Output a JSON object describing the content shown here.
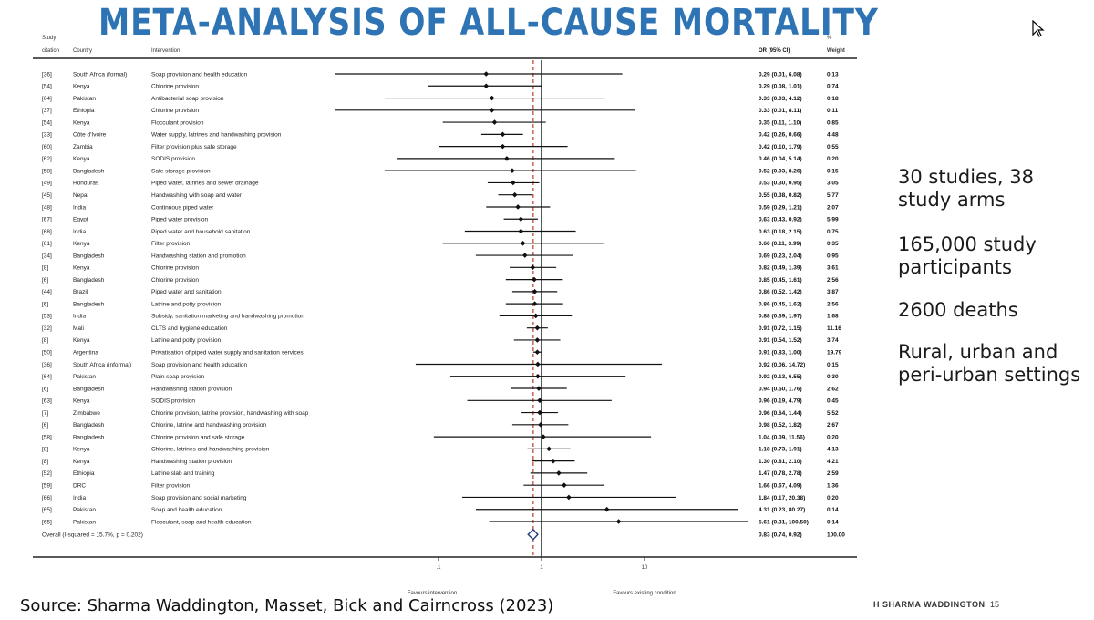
{
  "slide": {
    "title": "META-ANALYSIS OF ALL-CAUSE MORTALITY",
    "source": "Source: Sharma Waddington, Masset, Bick and Cairncross (2023)",
    "footer_author": "H SHARMA WADDINGTON",
    "footer_page": "15"
  },
  "bullets": [
    "30 studies, 38 study arms",
    "165,000 study participants",
    "2600 deaths",
    "Rural, urban and peri-urban settings"
  ],
  "chart_data": {
    "type": "forest",
    "columns": {
      "citation_line1": "Study",
      "citation_line2": "citation",
      "country": "Country",
      "intervention": "Intervention",
      "or": "OR (95% CI)",
      "weight_line1": "%",
      "weight_line2": "Weight"
    },
    "x_axis": {
      "scale": "log",
      "ticks": [
        0.1,
        1,
        10
      ],
      "tick_labels": [
        ".1",
        "1",
        "10"
      ],
      "left_label": "Favours intervention",
      "right_label": "Favours existing condition"
    },
    "rows": [
      {
        "citation": "[36]",
        "country": "South Africa (formal)",
        "intervention": "Soap provision and health education",
        "or": 0.29,
        "lo": 0.01,
        "hi": 6.08,
        "or_text": "0.29 (0.01, 6.08)",
        "weight": "0.13"
      },
      {
        "citation": "[54]",
        "country": "Kenya",
        "intervention": "Chlorine provision",
        "or": 0.29,
        "lo": 0.08,
        "hi": 1.01,
        "or_text": "0.29 (0.08, 1.01)",
        "weight": "0.74"
      },
      {
        "citation": "[64]",
        "country": "Pakistan",
        "intervention": "Antibacterial soap provision",
        "or": 0.33,
        "lo": 0.03,
        "hi": 4.12,
        "or_text": "0.33 (0.03, 4.12)",
        "weight": "0.18"
      },
      {
        "citation": "[37]",
        "country": "Ethiopia",
        "intervention": "Chlorine provision",
        "or": 0.33,
        "lo": 0.01,
        "hi": 8.11,
        "or_text": "0.33 (0.01, 8.11)",
        "weight": "0.11"
      },
      {
        "citation": "[54]",
        "country": "Kenya",
        "intervention": "Flocculant provision",
        "or": 0.35,
        "lo": 0.11,
        "hi": 1.1,
        "or_text": "0.35 (0.11, 1.10)",
        "weight": "0.85"
      },
      {
        "citation": "[33]",
        "country": "Côte d'Ivoire",
        "intervention": "Water supply, latrines and handwashing provision",
        "or": 0.42,
        "lo": 0.26,
        "hi": 0.66,
        "or_text": "0.42 (0.26, 0.66)",
        "weight": "4.48"
      },
      {
        "citation": "[60]",
        "country": "Zambia",
        "intervention": "Filter provision plus safe storage",
        "or": 0.42,
        "lo": 0.1,
        "hi": 1.79,
        "or_text": "0.42 (0.10, 1.79)",
        "weight": "0.55"
      },
      {
        "citation": "[62]",
        "country": "Kenya",
        "intervention": "SODIS provision",
        "or": 0.46,
        "lo": 0.04,
        "hi": 5.14,
        "or_text": "0.46 (0.04, 5.14)",
        "weight": "0.20"
      },
      {
        "citation": "[58]",
        "country": "Bangladesh",
        "intervention": "Safe storage provision",
        "or": 0.52,
        "lo": 0.03,
        "hi": 8.26,
        "or_text": "0.52 (0.03, 8.26)",
        "weight": "0.15"
      },
      {
        "citation": "[49]",
        "country": "Honduras",
        "intervention": "Piped water, latrines and sewer drainage",
        "or": 0.53,
        "lo": 0.3,
        "hi": 0.95,
        "or_text": "0.53 (0.30, 0.95)",
        "weight": "3.05"
      },
      {
        "citation": "[45]",
        "country": "Nepal",
        "intervention": "Handwashing with soap and water",
        "or": 0.55,
        "lo": 0.38,
        "hi": 0.82,
        "or_text": "0.55 (0.38, 0.82)",
        "weight": "5.77"
      },
      {
        "citation": "[48]",
        "country": "India",
        "intervention": "Continuous piped water",
        "or": 0.59,
        "lo": 0.29,
        "hi": 1.21,
        "or_text": "0.59 (0.29, 1.21)",
        "weight": "2.07"
      },
      {
        "citation": "[67]",
        "country": "Egypt",
        "intervention": "Piped water provision",
        "or": 0.63,
        "lo": 0.43,
        "hi": 0.92,
        "or_text": "0.63 (0.43, 0.92)",
        "weight": "5.99"
      },
      {
        "citation": "[68]",
        "country": "India",
        "intervention": "Piped water and household sanitation",
        "or": 0.63,
        "lo": 0.18,
        "hi": 2.15,
        "or_text": "0.63 (0.18, 2.15)",
        "weight": "0.75"
      },
      {
        "citation": "[61]",
        "country": "Kenya",
        "intervention": "Filter provision",
        "or": 0.66,
        "lo": 0.11,
        "hi": 3.99,
        "or_text": "0.66 (0.11, 3.99)",
        "weight": "0.35"
      },
      {
        "citation": "[34]",
        "country": "Bangladesh",
        "intervention": "Handwashing station and promotion",
        "or": 0.69,
        "lo": 0.23,
        "hi": 2.04,
        "or_text": "0.69 (0.23, 2.04)",
        "weight": "0.95"
      },
      {
        "citation": "[8]",
        "country": "Kenya",
        "intervention": "Chlorine provision",
        "or": 0.82,
        "lo": 0.49,
        "hi": 1.39,
        "or_text": "0.82 (0.49, 1.39)",
        "weight": "3.61"
      },
      {
        "citation": "[6]",
        "country": "Bangladesh",
        "intervention": "Chlorine provision",
        "or": 0.85,
        "lo": 0.45,
        "hi": 1.61,
        "or_text": "0.85 (0.45, 1.61)",
        "weight": "2.56"
      },
      {
        "citation": "[44]",
        "country": "Brazil",
        "intervention": "Piped water and sanitation",
        "or": 0.86,
        "lo": 0.52,
        "hi": 1.42,
        "or_text": "0.86 (0.52, 1.42)",
        "weight": "3.87"
      },
      {
        "citation": "[6]",
        "country": "Bangladesh",
        "intervention": "Latrine and potty provision",
        "or": 0.86,
        "lo": 0.45,
        "hi": 1.62,
        "or_text": "0.86 (0.45, 1.62)",
        "weight": "2.56"
      },
      {
        "citation": "[53]",
        "country": "India",
        "intervention": "Subsidy, sanitation marketing and handwashing promotion",
        "or": 0.88,
        "lo": 0.39,
        "hi": 1.97,
        "or_text": "0.88 (0.39, 1.97)",
        "weight": "1.68"
      },
      {
        "citation": "[32]",
        "country": "Mali",
        "intervention": "CLTS and hygiene education",
        "or": 0.91,
        "lo": 0.72,
        "hi": 1.15,
        "or_text": "0.91 (0.72, 1.15)",
        "weight": "11.16"
      },
      {
        "citation": "[8]",
        "country": "Kenya",
        "intervention": "Latrine and potty provision",
        "or": 0.91,
        "lo": 0.54,
        "hi": 1.52,
        "or_text": "0.91 (0.54, 1.52)",
        "weight": "3.74"
      },
      {
        "citation": "[50]",
        "country": "Argentina",
        "intervention": "Privatisation of piped water supply and sanitation services",
        "or": 0.91,
        "lo": 0.83,
        "hi": 1.0,
        "or_text": "0.91 (0.83, 1.00)",
        "weight": "19.79"
      },
      {
        "citation": "[36]",
        "country": "South Africa (informal)",
        "intervention": "Soap provision and health education",
        "or": 0.92,
        "lo": 0.06,
        "hi": 14.72,
        "or_text": "0.92 (0.06, 14.72)",
        "weight": "0.15"
      },
      {
        "citation": "[64]",
        "country": "Pakistan",
        "intervention": "Plain soap provision",
        "or": 0.92,
        "lo": 0.13,
        "hi": 6.55,
        "or_text": "0.92 (0.13, 6.55)",
        "weight": "0.30"
      },
      {
        "citation": "[6]",
        "country": "Bangladesh",
        "intervention": "Handwashing station provision",
        "or": 0.94,
        "lo": 0.5,
        "hi": 1.76,
        "or_text": "0.94 (0.50, 1.76)",
        "weight": "2.62"
      },
      {
        "citation": "[63]",
        "country": "Kenya",
        "intervention": "SODIS provision",
        "or": 0.96,
        "lo": 0.19,
        "hi": 4.79,
        "or_text": "0.96 (0.19, 4.79)",
        "weight": "0.45"
      },
      {
        "citation": "[7]",
        "country": "Zimbabwe",
        "intervention": "Chlorine provision, latrine provision, handwashing with soap",
        "or": 0.96,
        "lo": 0.64,
        "hi": 1.44,
        "or_text": "0.96 (0.64, 1.44)",
        "weight": "5.52"
      },
      {
        "citation": "[6]",
        "country": "Bangladesh",
        "intervention": "Chlorine, latrine and handwashing provision",
        "or": 0.98,
        "lo": 0.52,
        "hi": 1.82,
        "or_text": "0.98 (0.52, 1.82)",
        "weight": "2.67"
      },
      {
        "citation": "[58]",
        "country": "Bangladesh",
        "intervention": "Chlorine provision and safe storage",
        "or": 1.04,
        "lo": 0.09,
        "hi": 11.56,
        "or_text": "1.04 (0.09, 11.56)",
        "weight": "0.20"
      },
      {
        "citation": "[8]",
        "country": "Kenya",
        "intervention": "Chlorine, latrines and handwashing provision",
        "or": 1.18,
        "lo": 0.73,
        "hi": 1.91,
        "or_text": "1.18 (0.73, 1.91)",
        "weight": "4.13"
      },
      {
        "citation": "[8]",
        "country": "Kenya",
        "intervention": "Handwashing station provision",
        "or": 1.3,
        "lo": 0.81,
        "hi": 2.1,
        "or_text": "1.30 (0.81, 2.10)",
        "weight": "4.21"
      },
      {
        "citation": "[52]",
        "country": "Ethiopia",
        "intervention": "Latrine slab and training",
        "or": 1.47,
        "lo": 0.78,
        "hi": 2.78,
        "or_text": "1.47 (0.78, 2.78)",
        "weight": "2.59"
      },
      {
        "citation": "[59]",
        "country": "DRC",
        "intervention": "Filter provision",
        "or": 1.66,
        "lo": 0.67,
        "hi": 4.09,
        "or_text": "1.66 (0.67, 4.09)",
        "weight": "1.36"
      },
      {
        "citation": "[66]",
        "country": "India",
        "intervention": "Soap provision and social marketing",
        "or": 1.84,
        "lo": 0.17,
        "hi": 20.38,
        "or_text": "1.84 (0.17, 20.38)",
        "weight": "0.20"
      },
      {
        "citation": "[65]",
        "country": "Pakistan",
        "intervention": "Soap and health education",
        "or": 4.31,
        "lo": 0.23,
        "hi": 80.27,
        "or_text": "4.31 (0.23, 80.27)",
        "weight": "0.14"
      },
      {
        "citation": "[65]",
        "country": "Pakistan",
        "intervention": "Flocculant, soap and health education",
        "or": 5.61,
        "lo": 0.31,
        "hi": 100.5,
        "or_text": "5.61 (0.31, 100.50)",
        "weight": "0.14"
      }
    ],
    "overall": {
      "label": "Overall  (I-squared = 15.7%, p = 0.202)",
      "or": 0.83,
      "lo": 0.74,
      "hi": 0.92,
      "or_text": "0.83 (0.74, 0.92)",
      "weight": "100.00"
    },
    "colors": {
      "ci_line": "#111111",
      "pooled_line": "#c0392b",
      "title": "#2e74b5"
    }
  }
}
